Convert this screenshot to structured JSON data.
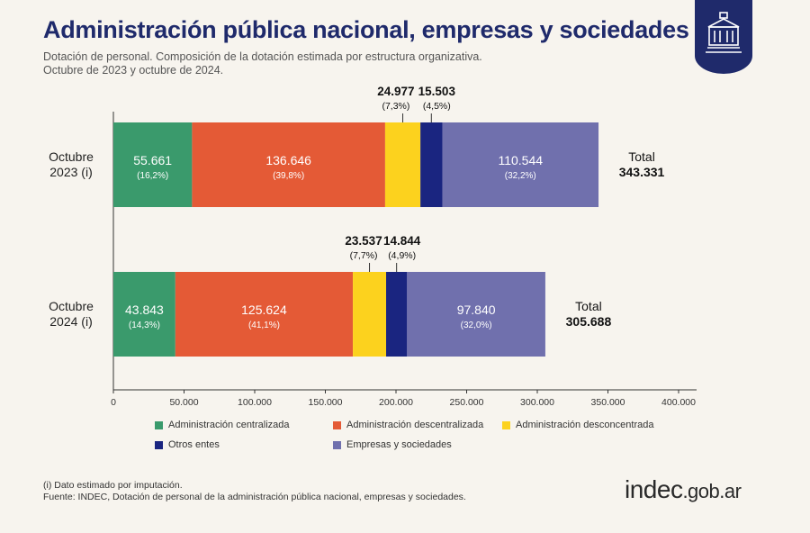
{
  "header": {
    "title": "Administración pública nacional, empresas y sociedades",
    "subtitle_line1": "Dotación de personal. Composición de la dotación estimada por estructura organizativa.",
    "subtitle_line2": "Octubre de 2023 y octubre de 2024."
  },
  "badge": {
    "icon": "government-building-icon",
    "color": "#1f2a6b"
  },
  "chart_data": {
    "type": "bar",
    "orientation": "horizontal",
    "stacked": true,
    "categories": [
      "Octubre\n2023 (i)",
      "Octubre\n2024 (i)"
    ],
    "xlim": [
      0,
      400000
    ],
    "xticks": [
      "0",
      "50.000",
      "100.000",
      "150.000",
      "200.000",
      "250.000",
      "300.000",
      "350.000",
      "400.000"
    ],
    "xtick_values": [
      0,
      50000,
      100000,
      150000,
      200000,
      250000,
      300000,
      350000,
      400000
    ],
    "series": [
      {
        "name": "Administración centralizada",
        "color": "#3a9a6c",
        "values": [
          55661,
          43843
        ],
        "labels": [
          "55.661",
          "43.843"
        ],
        "pct": [
          "(16,2%)",
          "(14,3%)"
        ],
        "label_position": "inside"
      },
      {
        "name": "Administración descentralizada",
        "color": "#e45a36",
        "values": [
          136646,
          125624
        ],
        "labels": [
          "136.646",
          "125.624"
        ],
        "pct": [
          "(39,8%)",
          "(41,1%)"
        ],
        "label_position": "inside"
      },
      {
        "name": "Administración desconcentrada",
        "color": "#fcd21e",
        "values": [
          24977,
          23537
        ],
        "labels": [
          "24.977",
          "23.537"
        ],
        "pct": [
          "(7,3%)",
          "(7,7%)"
        ],
        "label_position": "above"
      },
      {
        "name": "Otros entes",
        "color": "#1a2580",
        "values": [
          15503,
          14844
        ],
        "labels": [
          "15.503",
          "14.844"
        ],
        "pct": [
          "(4,5%)",
          "(4,9%)"
        ],
        "label_position": "above"
      },
      {
        "name": "Empresas y sociedades",
        "color": "#7070ad",
        "values": [
          110544,
          97840
        ],
        "labels": [
          "110.544",
          "97.840"
        ],
        "pct": [
          "(32,2%)",
          "(32,0%)"
        ],
        "label_position": "inside"
      }
    ],
    "totals": {
      "label": "Total",
      "values": [
        "343.331",
        "305.688"
      ]
    },
    "legend_placement": "bottom",
    "grid": false
  },
  "footer": {
    "note": "(i) Dato estimado por imputación.",
    "source": "Fuente: INDEC, Dotación de personal de la administración pública nacional, empresas y sociedades.",
    "logo_main": "indec",
    "logo_suffix": ".gob.ar"
  }
}
